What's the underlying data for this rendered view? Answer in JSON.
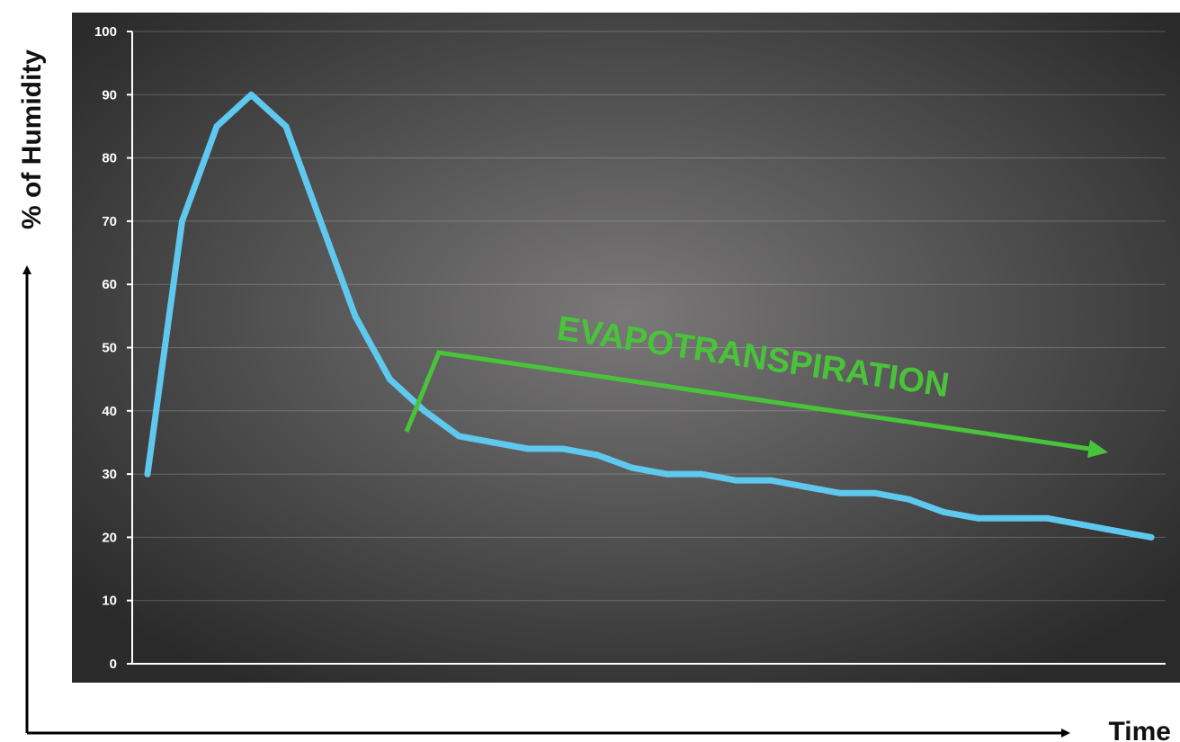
{
  "chart_data": {
    "type": "line",
    "title": "",
    "xlabel": "Time",
    "ylabel": "% of Humidity",
    "ylim": [
      0,
      100
    ],
    "yticks": [
      0,
      10,
      20,
      30,
      40,
      50,
      60,
      70,
      80,
      90,
      100
    ],
    "grid": true,
    "series": [
      {
        "values": [
          30,
          70,
          85,
          90,
          85,
          70,
          55,
          45,
          40,
          36,
          35,
          34,
          34,
          33,
          31,
          30,
          30,
          29,
          29,
          28,
          27,
          27,
          26,
          24,
          23,
          23,
          23,
          22,
          21,
          20
        ]
      }
    ],
    "annotations": [
      {
        "text": "EVAPOTRANSPIRATION"
      }
    ]
  },
  "colors": {
    "plot_background_center": "#7a7878",
    "plot_background_edge": "#2a2a2a",
    "line": "#5ec8ee",
    "annotation": "#49c43a",
    "axis_arrows": "#000000"
  }
}
